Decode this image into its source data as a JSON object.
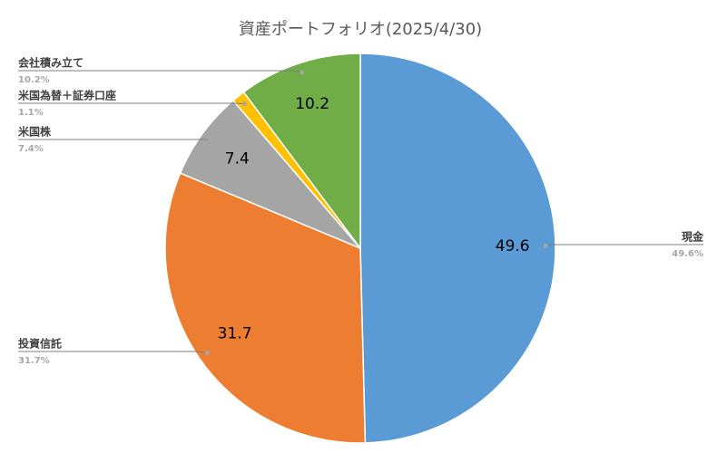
{
  "chart_data": {
    "type": "pie",
    "title": "資産ポートフォリオ(2025/4/30)",
    "categories": [
      "現金",
      "投資信託",
      "米国株",
      "米国為替＋証券口座",
      "会社積み立て"
    ],
    "values": [
      49.6,
      31.7,
      7.4,
      1.1,
      10.2
    ],
    "value_labels": [
      "49.6%",
      "31.7%",
      "7.4%",
      "1.1%",
      "10.2%"
    ],
    "colors": [
      "#5b9bd5",
      "#ed7d31",
      "#a5a5a5",
      "#ffc000",
      "#70ad47"
    ]
  }
}
